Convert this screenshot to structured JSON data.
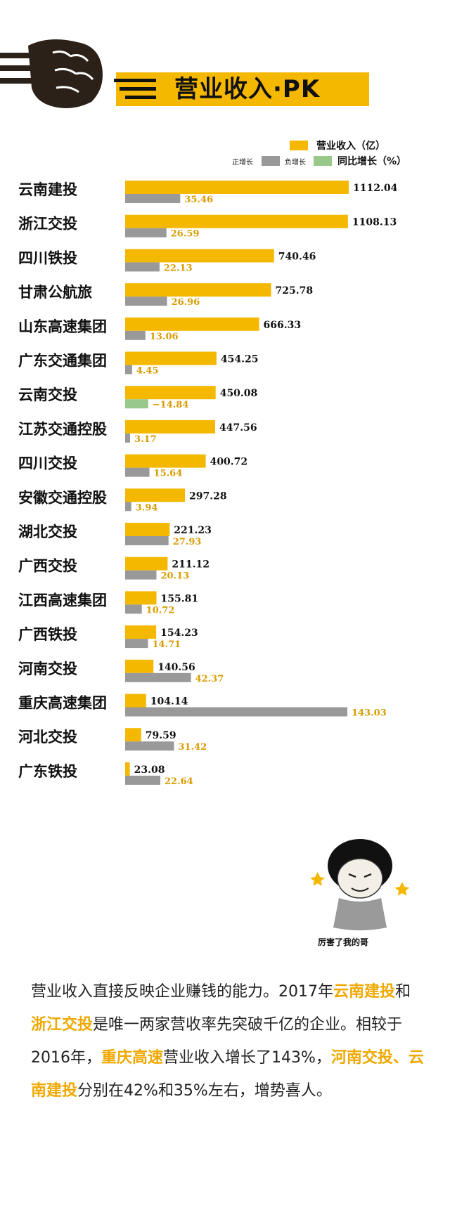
{
  "header": {
    "title": "营业收入·PK"
  },
  "legend": {
    "revenue": "营业收入（亿）",
    "positive": "正增长",
    "negative": "负增长",
    "growth": "同比增长（%）"
  },
  "colors": {
    "revenue": "#f5b800",
    "positive": "#999999",
    "negative": "#99c98a",
    "growth_label": "#d99b00"
  },
  "chart_data": {
    "type": "bar",
    "orientation": "horizontal",
    "categories": [
      "云南建投",
      "浙江交投",
      "四川铁投",
      "甘肃公航旅",
      "山东高速集团",
      "广东交通集团",
      "云南交投",
      "江苏交通控股",
      "四川交投",
      "安徽交通控股",
      "湖北交投",
      "广西交投",
      "江西高速集团",
      "广西铁投",
      "河南交投",
      "重庆高速集团",
      "河北交投",
      "广东铁投"
    ],
    "series": [
      {
        "name": "营业收入（亿）",
        "values": [
          1112.04,
          1108.13,
          740.46,
          725.78,
          666.33,
          454.25,
          450.08,
          447.56,
          400.72,
          297.28,
          221.23,
          211.12,
          155.81,
          154.23,
          140.56,
          104.14,
          79.59,
          23.08
        ]
      },
      {
        "name": "同比增长（%）",
        "values": [
          35.46,
          26.59,
          22.13,
          26.96,
          13.06,
          4.45,
          -14.84,
          3.17,
          15.64,
          3.94,
          27.93,
          20.13,
          10.72,
          14.71,
          42.37,
          143.03,
          31.42,
          22.64
        ]
      }
    ],
    "value_labels": {
      "revenue": [
        "1112.04",
        "1108.13",
        "740.46",
        "725.78",
        "666.33",
        "454.25",
        "450.08",
        "447.56",
        "400.72",
        "297.28",
        "221.23",
        "211.12",
        "155.81",
        "154.23",
        "140.56",
        "104.14",
        "79.59",
        "23.08"
      ],
      "growth": [
        "35.46",
        "26.59",
        "22.13",
        "26.96",
        "13.06",
        "4.45",
        "−14.84",
        "3.17",
        "15.64",
        "3.94",
        "27.93",
        "20.13",
        "10.72",
        "14.71",
        "42.37",
        "143.03",
        "31.42",
        "22.64"
      ]
    }
  },
  "meme": {
    "caption": "厉害了我的哥"
  },
  "summary": {
    "parts": [
      {
        "t": "营业收入直接反映企业赚钱的能力。2017年",
        "h": false
      },
      {
        "t": "云南建投",
        "h": true
      },
      {
        "t": "和",
        "h": false
      },
      {
        "t": "浙江交投",
        "h": true
      },
      {
        "t": "是唯一两家营收率先突破千亿的企业。相较于2016年，",
        "h": false
      },
      {
        "t": "重庆高速",
        "h": true
      },
      {
        "t": "营业收入增长了143%，",
        "h": false
      },
      {
        "t": "河南交投、云南建投",
        "h": true
      },
      {
        "t": "分别在42%和35%左右，增势喜人。",
        "h": false
      }
    ]
  }
}
